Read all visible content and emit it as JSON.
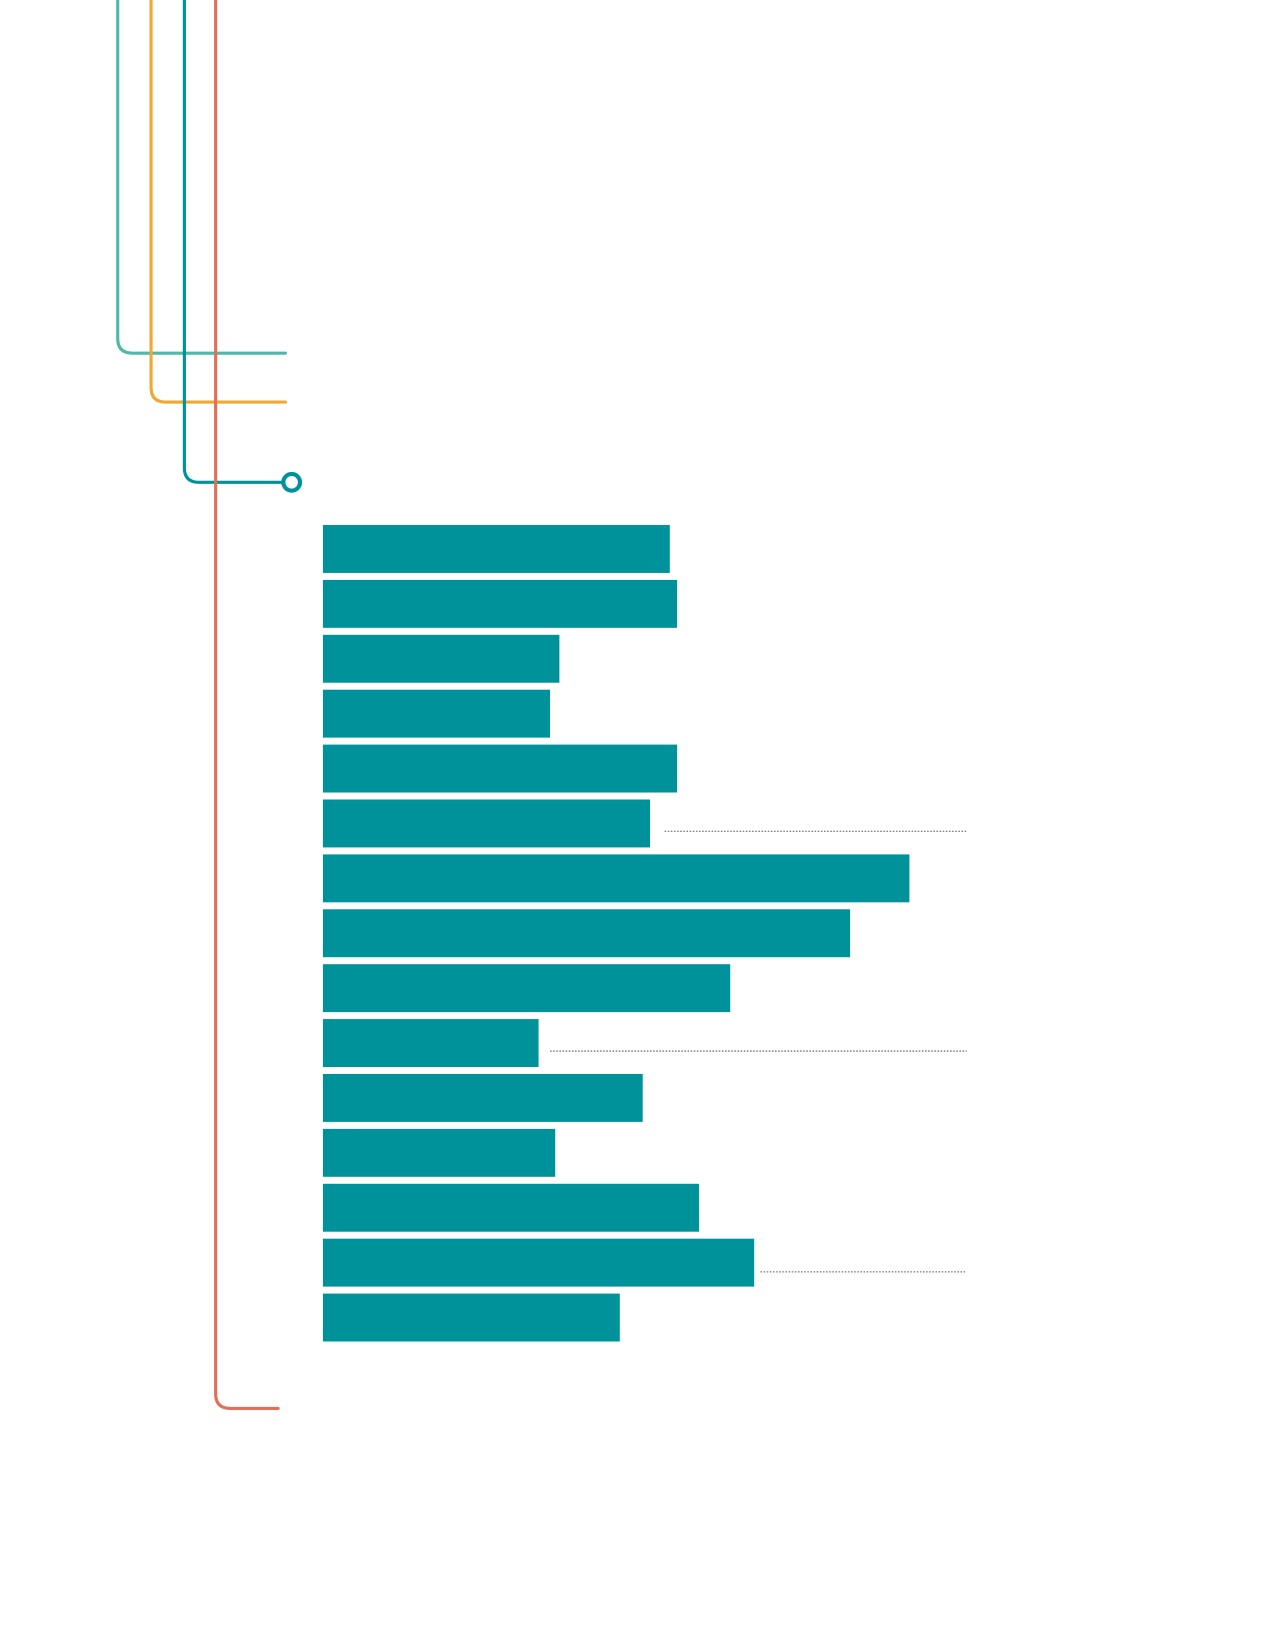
{
  "chart_data": {
    "type": "bar",
    "orientation": "horizontal",
    "color": "#00929b",
    "values": [
      333,
      340,
      227,
      218,
      340,
      314,
      563,
      506,
      391,
      207,
      307,
      223,
      361,
      414,
      285
    ]
  }
}
